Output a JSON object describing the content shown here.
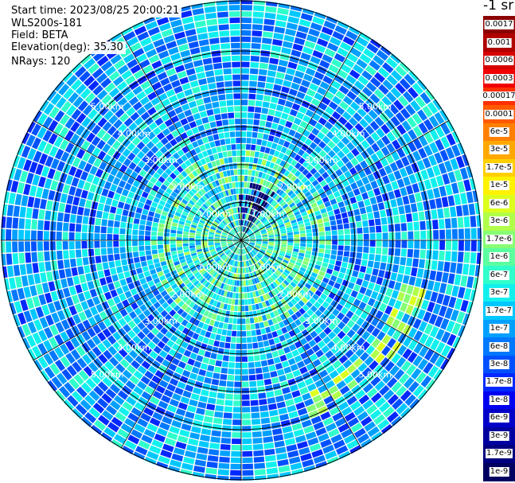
{
  "info": {
    "start_time": "Start time: 2023/08/25 20:00:21",
    "instrument": "WLS200s-181",
    "field": "Field: BETA",
    "elevation": "Elevation(deg): 35.30",
    "nrays": "NRays: 120"
  },
  "colorbar": {
    "title": "-1 sr",
    "labels": [
      "0.0017",
      "0.001",
      "0.0006",
      "0.0003",
      "0.00017",
      "0.0001",
      "6e-5",
      "3e-5",
      "1.7e-5",
      "1e-5",
      "6e-6",
      "3e-6",
      "1.7e-6",
      "1e-6",
      "6e-7",
      "3e-7",
      "1.7e-7",
      "1e-7",
      "6e-8",
      "3e-8",
      "1.7e-8",
      "1e-8",
      "6e-9",
      "3e-9",
      "1.7e-9",
      "1e-9"
    ],
    "colors": [
      "#8b0000",
      "#b00000",
      "#d60000",
      "#f00000",
      "#ff3000",
      "#ff5a00",
      "#ff8000",
      "#ffa800",
      "#ffcf00",
      "#fff200",
      "#dcff1e",
      "#b0ff4a",
      "#86ff74",
      "#5cffa0",
      "#30ffcc",
      "#12f0ee",
      "#00c8ff",
      "#00a0ff",
      "#0078ff",
      "#0050ff",
      "#0028ff",
      "#0000f0",
      "#0000c8",
      "#0000a0",
      "#000080",
      "#000060"
    ]
  },
  "chart_data": {
    "type": "heatmap",
    "projection": "polar PPI scan",
    "variable": "BETA",
    "elevation_deg": 35.3,
    "n_rays": 120,
    "range_rings_km": [
      1.0,
      2.0,
      3.0,
      4.0,
      5.0
    ],
    "ring_labels": [
      "1.00km",
      "2.00km",
      "3.00km",
      "4.00km",
      "5.00km"
    ],
    "value_range": [
      1e-09,
      0.0017
    ],
    "color_scale": "log",
    "background_level": 1e-07,
    "features": [
      {
        "name": "elevated backscatter band",
        "level": 3e-06,
        "azimuth_deg": [
          105,
          160
        ],
        "range_km": [
          4.4,
          5.0
        ]
      },
      {
        "name": "low backscatter wedge",
        "level": 1e-09,
        "azimuth_deg": [
          10,
          35
        ],
        "range_km": [
          0.2,
          1.4
        ]
      },
      {
        "name": "low backscatter column",
        "level": 3e-09,
        "azimuth_deg": [
          355,
          10
        ],
        "range_km": [
          0.3,
          1.1
        ]
      }
    ]
  }
}
